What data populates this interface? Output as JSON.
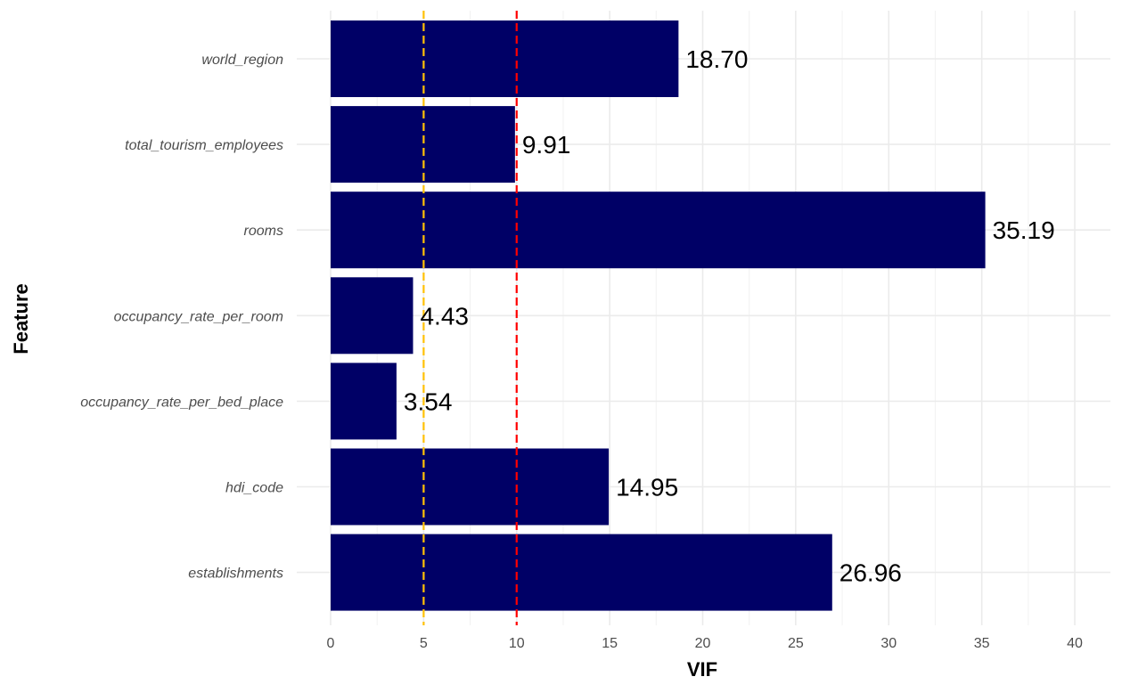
{
  "chart_data": {
    "type": "bar",
    "orientation": "horizontal",
    "xlabel": "VIF",
    "ylabel": "Feature",
    "categories": [
      "world_region",
      "total_tourism_employees",
      "rooms",
      "occupancy_rate_per_room",
      "occupancy_rate_per_bed_place",
      "hdi_code",
      "establishments"
    ],
    "values": [
      18.7,
      9.91,
      35.19,
      4.43,
      3.54,
      14.95,
      26.96
    ],
    "data_labels": [
      "18.70",
      "9.91",
      "35.19",
      "4.43",
      "3.54",
      "14.95",
      "26.96"
    ],
    "xlim": [
      0,
      40
    ],
    "x_ticks": [
      0,
      5,
      10,
      15,
      20,
      25,
      30,
      35,
      40
    ],
    "x_tick_labels": [
      "0",
      "5",
      "10",
      "15",
      "20",
      "25",
      "30",
      "35",
      "40"
    ],
    "reference_lines": [
      {
        "value": 5,
        "color": "#FFC107",
        "style": "dashed"
      },
      {
        "value": 10,
        "color": "#FF0000",
        "style": "dashed"
      }
    ],
    "bar_color": "#000066",
    "grid": true,
    "legend": "none"
  }
}
